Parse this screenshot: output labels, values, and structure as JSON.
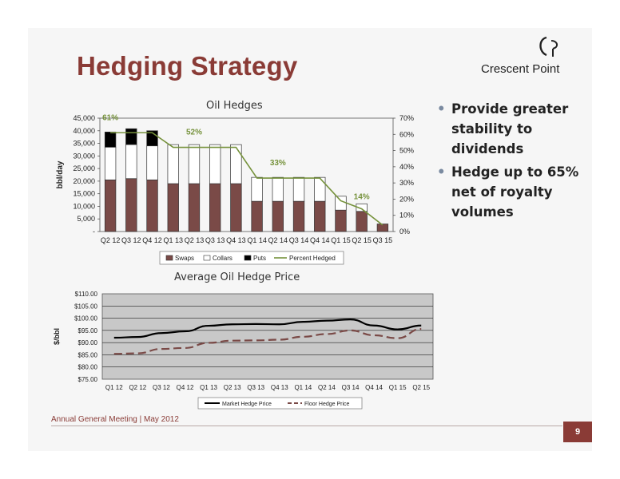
{
  "slide": {
    "title": "Hedging Strategy",
    "logo_text": "Crescent Point",
    "bullets": [
      "Provide greater stability to dividends",
      "Hedge up to 65% net of royalty volumes"
    ],
    "footer": "Annual General Meeting | May 2012",
    "page_number": "9"
  },
  "colors": {
    "title": "#8a3b36",
    "swaps": "#7a4a47",
    "collars": "#ffffff",
    "puts": "#000000",
    "percent_line": "#76923c",
    "market_line": "#000000",
    "floor_line": "#7a4a47"
  },
  "chart_data": [
    {
      "type": "bar",
      "title": "Oil Hedges",
      "ylabel": "bbl/day",
      "categories": [
        "Q2 12",
        "Q3 12",
        "Q4 12",
        "Q1 13",
        "Q2 13",
        "Q3 13",
        "Q4 13",
        "Q1 14",
        "Q2 14",
        "Q3 14",
        "Q4 14",
        "Q1 15",
        "Q2 15",
        "Q3 15"
      ],
      "ylim": [
        0,
        45000
      ],
      "y2lim": [
        0,
        70
      ],
      "y_ticks": [
        "-",
        "5,000",
        "10,000",
        "15,000",
        "20,000",
        "25,000",
        "30,000",
        "35,000",
        "40,000",
        "45,000"
      ],
      "y2_ticks": [
        "0%",
        "10%",
        "20%",
        "30%",
        "40%",
        "50%",
        "60%",
        "70%"
      ],
      "series": [
        {
          "name": "Swaps",
          "values": [
            20500,
            21000,
            20500,
            19000,
            19000,
            19000,
            19000,
            12000,
            12000,
            12000,
            12000,
            8500,
            8000,
            3000
          ]
        },
        {
          "name": "Collars",
          "values": [
            13000,
            13500,
            13500,
            15500,
            15500,
            15500,
            15500,
            9500,
            9500,
            9500,
            9500,
            5500,
            3000,
            0
          ]
        },
        {
          "name": "Puts",
          "values": [
            6000,
            6300,
            6000,
            0,
            0,
            0,
            0,
            0,
            0,
            0,
            0,
            0,
            0,
            0
          ]
        },
        {
          "name": "Percent Hedged",
          "values": [
            61,
            61,
            61,
            52,
            52,
            52,
            52,
            33,
            33,
            33,
            33,
            19,
            14,
            4
          ]
        }
      ],
      "annotations": [
        "61%",
        "52%",
        "33%",
        "14%"
      ],
      "legend": "bottom"
    },
    {
      "type": "line",
      "title": "Average Oil Hedge Price",
      "ylabel": "$/bbl",
      "categories": [
        "Q1 12",
        "Q2 12",
        "Q3 12",
        "Q4 12",
        "Q1 13",
        "Q2 13",
        "Q3 13",
        "Q4 13",
        "Q1 14",
        "Q2 14",
        "Q3 14",
        "Q4 14",
        "Q1 15",
        "Q2 15"
      ],
      "ylim": [
        75,
        110
      ],
      "y_ticks": [
        "$75.00",
        "$80.00",
        "$85.00",
        "$90.00",
        "$95.00",
        "$100.00",
        "$105.00",
        "$110.00"
      ],
      "series": [
        {
          "name": "Market Hedge Price",
          "values": [
            92.0,
            92.3,
            93.9,
            94.6,
            96.9,
            97.5,
            97.6,
            97.5,
            98.5,
            99.0,
            99.5,
            97.0,
            95.4,
            97.0
          ]
        },
        {
          "name": "Floor Hedge Price",
          "values": [
            85.4,
            85.6,
            87.4,
            87.8,
            89.9,
            90.8,
            90.9,
            91.2,
            92.4,
            93.5,
            95.0,
            93.0,
            91.8,
            95.6
          ]
        }
      ],
      "grid": true,
      "legend": "bottom"
    }
  ]
}
